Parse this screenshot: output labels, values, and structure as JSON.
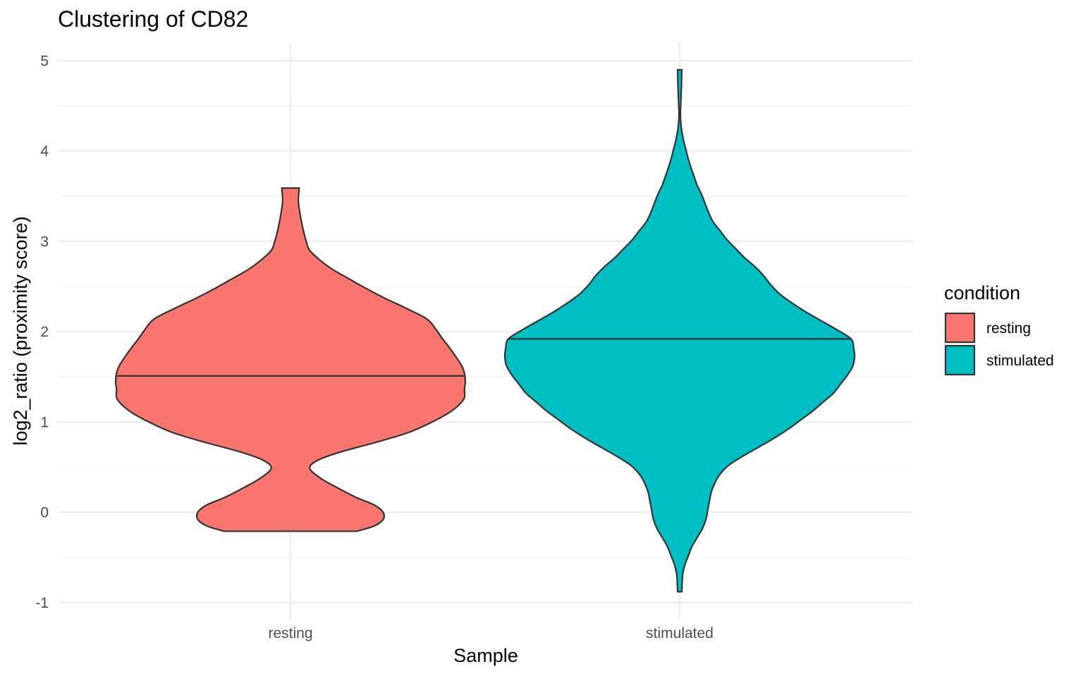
{
  "chart_data": {
    "type": "violin",
    "title": "Clustering of CD82",
    "xlabel": "Sample",
    "ylabel": "log2_ratio (proximity score)",
    "categories": [
      "resting",
      "stimulated"
    ],
    "ylim": [
      -1.1,
      5.2
    ],
    "y_ticks": [
      -1,
      0,
      1,
      2,
      3,
      4,
      5
    ],
    "grid": true,
    "legend": {
      "title": "condition",
      "position": "right",
      "entries": [
        {
          "label": "resting",
          "color": "#f8766d"
        },
        {
          "label": "stimulated",
          "color": "#00bfc4"
        }
      ]
    },
    "series": [
      {
        "name": "resting",
        "color": "#f8766d",
        "median": 1.51,
        "min": -0.21,
        "max": 3.59,
        "density_profile": [
          [
            -0.21,
            0.38
          ],
          [
            -0.15,
            0.48
          ],
          [
            -0.08,
            0.53
          ],
          [
            0.0,
            0.53
          ],
          [
            0.08,
            0.48
          ],
          [
            0.17,
            0.37
          ],
          [
            0.28,
            0.26
          ],
          [
            0.38,
            0.17
          ],
          [
            0.49,
            0.11
          ],
          [
            0.58,
            0.16
          ],
          [
            0.67,
            0.29
          ],
          [
            0.77,
            0.48
          ],
          [
            0.88,
            0.67
          ],
          [
            1.0,
            0.81
          ],
          [
            1.12,
            0.92
          ],
          [
            1.25,
            0.99
          ],
          [
            1.36,
            0.995
          ],
          [
            1.45,
            1.0
          ],
          [
            1.54,
            0.995
          ],
          [
            1.62,
            0.98
          ],
          [
            1.71,
            0.95
          ],
          [
            1.82,
            0.91
          ],
          [
            1.92,
            0.87
          ],
          [
            2.03,
            0.83
          ],
          [
            2.14,
            0.78
          ],
          [
            2.26,
            0.66
          ],
          [
            2.37,
            0.54
          ],
          [
            2.47,
            0.44
          ],
          [
            2.59,
            0.33
          ],
          [
            2.69,
            0.24
          ],
          [
            2.79,
            0.17
          ],
          [
            2.9,
            0.11
          ],
          [
            3.0,
            0.09
          ],
          [
            3.15,
            0.07
          ],
          [
            3.3,
            0.055
          ],
          [
            3.45,
            0.045
          ],
          [
            3.59,
            0.05
          ]
        ]
      },
      {
        "name": "stimulated",
        "color": "#00bfc4",
        "median": 1.92,
        "min": -0.88,
        "max": 4.9,
        "density_profile": [
          [
            -0.88,
            0.012
          ],
          [
            -0.78,
            0.014
          ],
          [
            -0.68,
            0.018
          ],
          [
            -0.58,
            0.03
          ],
          [
            -0.48,
            0.05
          ],
          [
            -0.38,
            0.07
          ],
          [
            -0.28,
            0.1
          ],
          [
            -0.18,
            0.13
          ],
          [
            -0.08,
            0.15
          ],
          [
            0.02,
            0.16
          ],
          [
            0.12,
            0.17
          ],
          [
            0.22,
            0.18
          ],
          [
            0.32,
            0.2
          ],
          [
            0.42,
            0.23
          ],
          [
            0.52,
            0.28
          ],
          [
            0.62,
            0.36
          ],
          [
            0.72,
            0.45
          ],
          [
            0.82,
            0.54
          ],
          [
            0.92,
            0.62
          ],
          [
            1.02,
            0.69
          ],
          [
            1.12,
            0.76
          ],
          [
            1.22,
            0.82
          ],
          [
            1.32,
            0.88
          ],
          [
            1.42,
            0.92
          ],
          [
            1.52,
            0.96
          ],
          [
            1.62,
            0.99
          ],
          [
            1.72,
            1.0
          ],
          [
            1.82,
            0.995
          ],
          [
            1.92,
            0.98
          ],
          [
            2.02,
            0.9
          ],
          [
            2.12,
            0.81
          ],
          [
            2.22,
            0.72
          ],
          [
            2.32,
            0.64
          ],
          [
            2.42,
            0.57
          ],
          [
            2.52,
            0.52
          ],
          [
            2.62,
            0.48
          ],
          [
            2.72,
            0.43
          ],
          [
            2.82,
            0.37
          ],
          [
            2.92,
            0.32
          ],
          [
            3.02,
            0.27
          ],
          [
            3.12,
            0.23
          ],
          [
            3.22,
            0.19
          ],
          [
            3.32,
            0.165
          ],
          [
            3.42,
            0.145
          ],
          [
            3.52,
            0.125
          ],
          [
            3.62,
            0.1
          ],
          [
            3.72,
            0.082
          ],
          [
            3.82,
            0.064
          ],
          [
            3.92,
            0.048
          ],
          [
            4.02,
            0.035
          ],
          [
            4.12,
            0.022
          ],
          [
            4.22,
            0.012
          ],
          [
            4.32,
            0.006
          ],
          [
            4.42,
            0.004
          ],
          [
            4.52,
            0.006
          ],
          [
            4.62,
            0.008
          ],
          [
            4.72,
            0.01
          ],
          [
            4.82,
            0.011
          ],
          [
            4.9,
            0.012
          ]
        ]
      }
    ]
  }
}
